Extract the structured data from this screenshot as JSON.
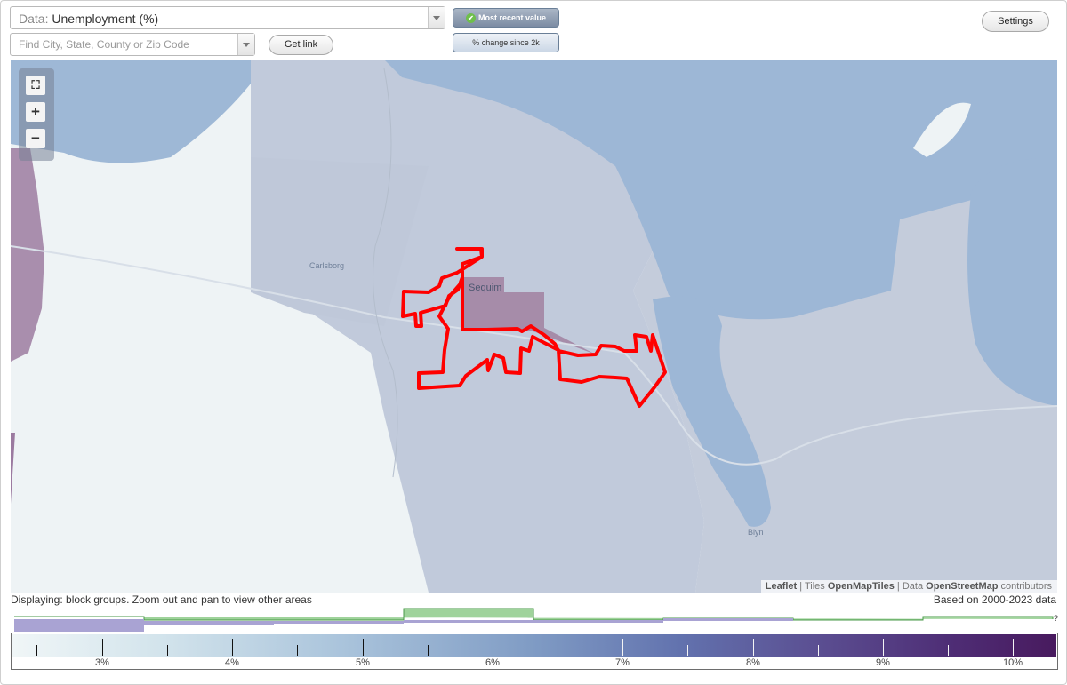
{
  "controls": {
    "data_label": "Data:",
    "data_value": "Unemployment (%)",
    "find_placeholder": "Find City, State, County or Zip Code",
    "get_link": "Get link",
    "most_recent": "Most recent value",
    "pct_change": "% change since 2k",
    "settings": "Settings"
  },
  "map": {
    "places": [
      "Carlsborg",
      "Sequim",
      "Blyn"
    ],
    "attribution": {
      "leaflet": "Leaflet",
      "tiles_label": "Tiles",
      "tiles": "OpenMapTiles",
      "data_label": "Data",
      "data": "OpenStreetMap",
      "contributors": "contributors"
    },
    "zoom": {
      "full": "⛶",
      "in": "+",
      "out": "−"
    },
    "colors": {
      "water": "#9eb8d6",
      "land_low": "#eef3f5",
      "block_group": "#bfc9da",
      "high": "#a58aab",
      "highlight": "#ff0000"
    }
  },
  "status": {
    "displaying": "Displaying: block groups. Zoom out and pan to view other areas",
    "based_on": "Based on 2000-2023 data",
    "question": "?"
  },
  "legend": {
    "labels": [
      "3%",
      "4%",
      "5%",
      "6%",
      "7%",
      "8%",
      "9%",
      "10%"
    ]
  }
}
